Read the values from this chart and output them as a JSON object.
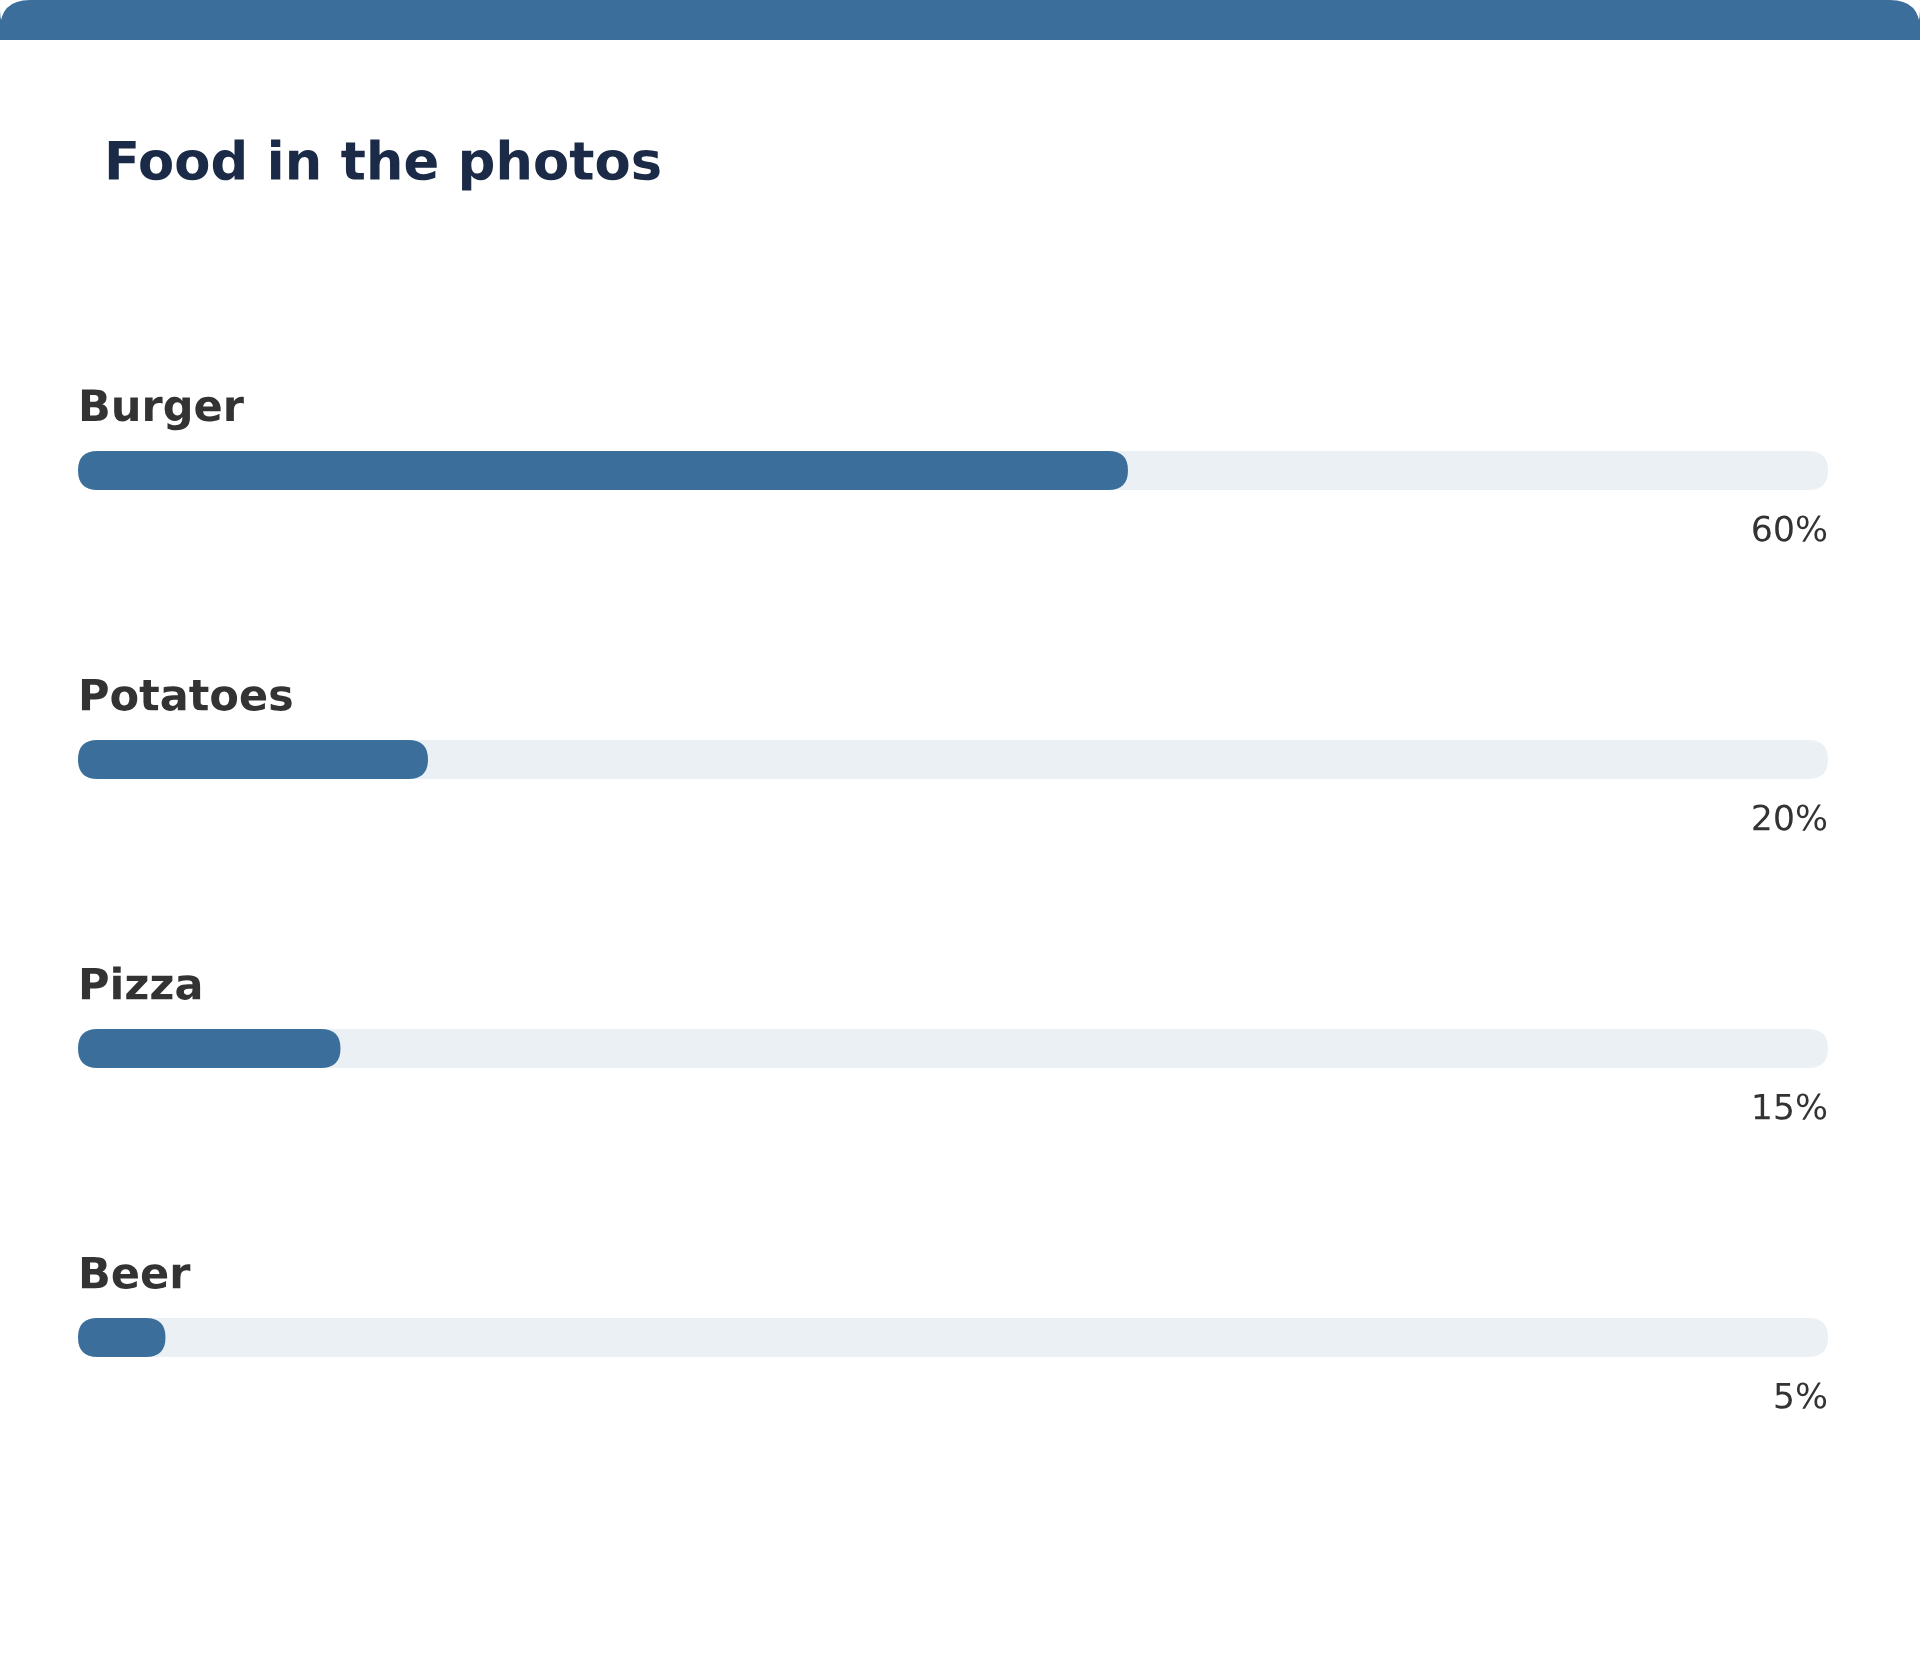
{
  "chart_data": {
    "type": "bar",
    "orientation": "horizontal",
    "title": "Food in the photos",
    "categories": [
      "Burger",
      "Potatoes",
      "Pizza",
      "Beer"
    ],
    "values": [
      60,
      20,
      15,
      5
    ],
    "value_labels": [
      "60%",
      "20%",
      "15%",
      "5%"
    ],
    "color": "#3b6e9b",
    "xlim": [
      0,
      100
    ],
    "tick_labels": "y"
  }
}
